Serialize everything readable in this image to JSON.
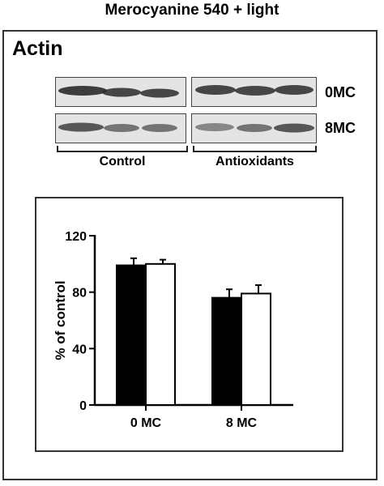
{
  "figure": {
    "title": "Merocyanine 540 + light",
    "panel_label": "Actin",
    "blot": {
      "rows": [
        "0MC",
        "8MC"
      ],
      "groups": [
        "Control",
        "Antioxidants"
      ]
    }
  },
  "chart_data": {
    "type": "bar",
    "categories": [
      "0 MC",
      "8 MC"
    ],
    "series": [
      {
        "color": "#000000",
        "values": [
          99,
          76
        ],
        "errors": [
          5,
          6
        ]
      },
      {
        "color": "#ffffff",
        "values": [
          100,
          79
        ],
        "errors": [
          3,
          6
        ]
      }
    ],
    "xlabel": "",
    "ylabel": "% of control",
    "ylim": [
      0,
      120
    ],
    "yticks": [
      0,
      40,
      80,
      120
    ],
    "grid": false
  }
}
